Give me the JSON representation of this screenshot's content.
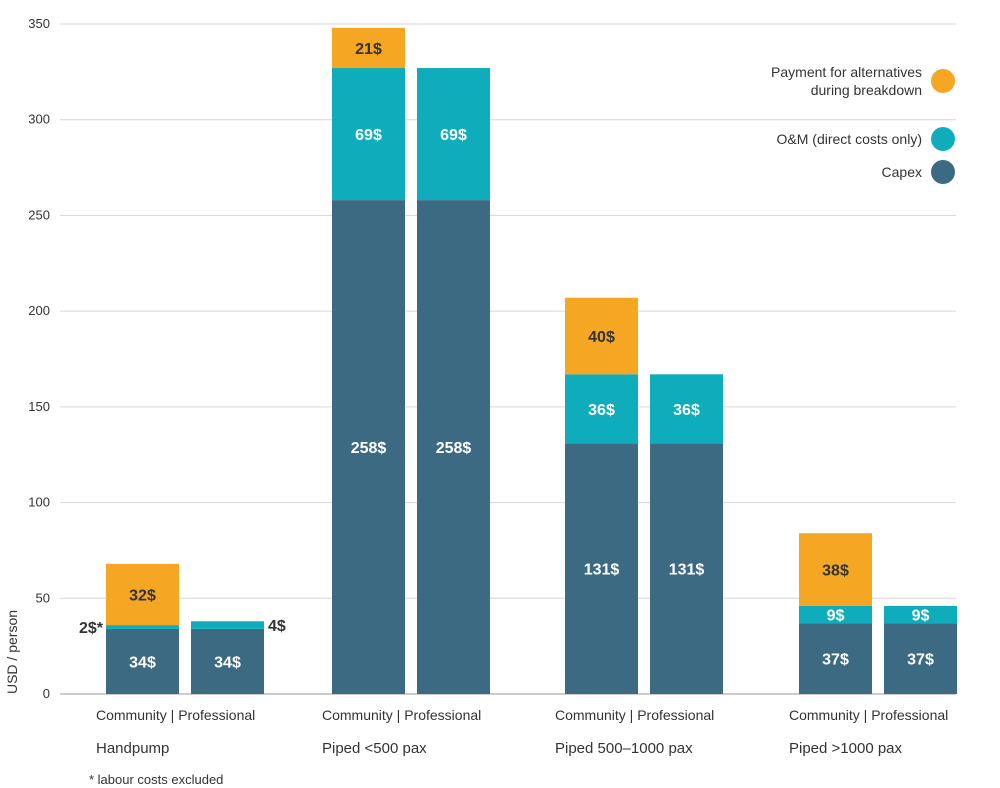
{
  "chart_data": {
    "type": "bar",
    "stacked": true,
    "ylabel": "USD / person",
    "ylim": [
      0,
      350
    ],
    "yticks": [
      0,
      50,
      100,
      150,
      200,
      250,
      300,
      350
    ],
    "grid": "horizontal",
    "legend_position": "top-right",
    "colors": {
      "capex": "#3d6a83",
      "om": "#0fadbc",
      "alternatives": "#f5a623",
      "text_light": "#ffffff",
      "text_dark": "#333333"
    },
    "series": [
      {
        "key": "capex",
        "name": "Capex"
      },
      {
        "key": "om",
        "name": "O&M (direct costs only)"
      },
      {
        "key": "alternatives",
        "name_lines": [
          "Payment for alternatives",
          "during breakdown"
        ]
      }
    ],
    "groups": [
      {
        "name": "Handpump",
        "bar_label_line": "Community | Professional",
        "bars": [
          {
            "name": "Community",
            "capex": 34,
            "om": 2,
            "alternatives": 32,
            "labels": {
              "capex": "34$",
              "om": "2$*",
              "alternatives": "32$"
            }
          },
          {
            "name": "Professional",
            "capex": 34,
            "om": 4,
            "alternatives": 0,
            "labels": {
              "capex": "34$",
              "om": "4$"
            }
          }
        ]
      },
      {
        "name": "Piped <500 pax",
        "bar_label_line": "Community | Professional",
        "bars": [
          {
            "name": "Community",
            "capex": 258,
            "om": 69,
            "alternatives": 21,
            "labels": {
              "capex": "258$",
              "om": "69$",
              "alternatives": "21$"
            }
          },
          {
            "name": "Professional",
            "capex": 258,
            "om": 69,
            "alternatives": 0,
            "labels": {
              "capex": "258$",
              "om": "69$"
            }
          }
        ]
      },
      {
        "name": "Piped 500–1000 pax",
        "bar_label_line": "Community | Professional",
        "bars": [
          {
            "name": "Community",
            "capex": 131,
            "om": 36,
            "alternatives": 40,
            "labels": {
              "capex": "131$",
              "om": "36$",
              "alternatives": "40$"
            }
          },
          {
            "name": "Professional",
            "capex": 131,
            "om": 36,
            "alternatives": 0,
            "labels": {
              "capex": "131$",
              "om": "36$"
            }
          }
        ]
      },
      {
        "name": "Piped >1000 pax",
        "bar_label_line": "Community | Professional",
        "bars": [
          {
            "name": "Community",
            "capex": 37,
            "om": 9,
            "alternatives": 38,
            "labels": {
              "capex": "37$",
              "om": "9$",
              "alternatives": "38$"
            }
          },
          {
            "name": "Professional",
            "capex": 37,
            "om": 9,
            "alternatives": 0,
            "labels": {
              "capex": "37$",
              "om": "9$"
            }
          }
        ]
      }
    ],
    "footnote": "* labour costs excluded"
  }
}
